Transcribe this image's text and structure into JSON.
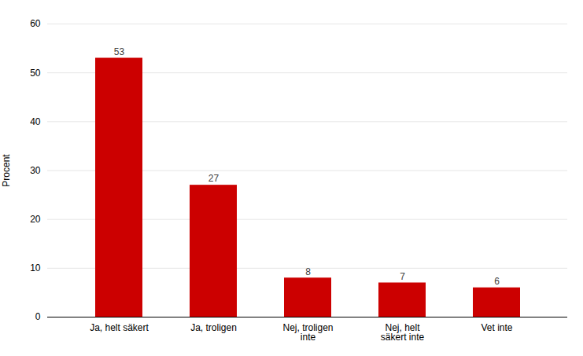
{
  "chart_data": {
    "type": "bar",
    "categories": [
      "Ja, helt säkert",
      "Ja, troligen",
      "Nej, troligen\ninte",
      "Nej, helt\nsäkert inte",
      "Vet inte"
    ],
    "values": [
      53,
      27,
      8,
      7,
      6
    ],
    "color": "#cc0000",
    "ylabel": "Procent",
    "ylim": [
      0,
      60
    ],
    "yticks": [
      0,
      10,
      20,
      30,
      40,
      50,
      60
    ],
    "grid": true,
    "data_labels": true
  }
}
